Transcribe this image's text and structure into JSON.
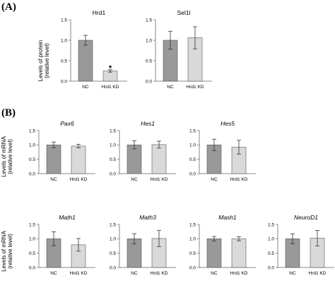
{
  "panel_labels": {
    "a": "(A)",
    "b": "(B)"
  },
  "y_axis": {
    "line1": "Levels of protein",
    "line2": "(relative level)",
    "b_line1": "Levels of mRNA",
    "b_line2": "(relative level)",
    "ticks": [
      "0.0",
      "0.5",
      "1.0",
      "1.5"
    ]
  },
  "colors": {
    "nc_bar": "#999999",
    "kd_bar": "#d9d9d9",
    "bar_stroke": "#555555",
    "axis": "#888888"
  },
  "chart_data": [
    {
      "type": "bar",
      "title": "Hrd1",
      "italic_title": false,
      "categories": [
        "NC",
        "Hrd1 KD"
      ],
      "values": [
        1.0,
        0.25
      ],
      "errors": [
        0.12,
        0.03
      ],
      "significance": [
        "",
        "*"
      ],
      "ylim": [
        0,
        1.5
      ]
    },
    {
      "type": "bar",
      "title": "Sel1l",
      "italic_title": false,
      "categories": [
        "NC",
        "Hrd1 KD"
      ],
      "values": [
        1.0,
        1.06
      ],
      "errors": [
        0.22,
        0.27
      ],
      "ylim": [
        0,
        1.5
      ]
    },
    {
      "type": "bar",
      "title": "Pax6",
      "italic_title": true,
      "categories": [
        "NC",
        "Hrd1 KD"
      ],
      "values": [
        1.0,
        0.96
      ],
      "errors": [
        0.1,
        0.06
      ],
      "ylim": [
        0,
        1.5
      ]
    },
    {
      "type": "bar",
      "title": "Hes1",
      "italic_title": true,
      "categories": [
        "NC",
        "Hrd1 KD"
      ],
      "values": [
        1.0,
        1.01
      ],
      "errors": [
        0.14,
        0.12
      ],
      "ylim": [
        0,
        1.5
      ]
    },
    {
      "type": "bar",
      "title": "Hes5",
      "italic_title": true,
      "categories": [
        "NC",
        "Hrd1 KD"
      ],
      "values": [
        1.0,
        0.92
      ],
      "errors": [
        0.2,
        0.24
      ],
      "ylim": [
        0,
        1.5
      ]
    },
    {
      "type": "bar",
      "title": "Math1",
      "italic_title": true,
      "categories": [
        "NC",
        "Hrd1 KD"
      ],
      "values": [
        1.0,
        0.79
      ],
      "errors": [
        0.24,
        0.22
      ],
      "ylim": [
        0,
        1.5
      ]
    },
    {
      "type": "bar",
      "title": "Math3",
      "italic_title": true,
      "categories": [
        "NC",
        "Hrd1 KD"
      ],
      "values": [
        1.0,
        1.01
      ],
      "errors": [
        0.18,
        0.28
      ],
      "ylim": [
        0,
        1.5
      ]
    },
    {
      "type": "bar",
      "title": "Mash1",
      "italic_title": true,
      "categories": [
        "NC",
        "Hrd1 KD"
      ],
      "values": [
        1.0,
        1.0
      ],
      "errors": [
        0.08,
        0.07
      ],
      "ylim": [
        0,
        1.5
      ]
    },
    {
      "type": "bar",
      "title": "NeuroD1",
      "italic_title": true,
      "categories": [
        "NC",
        "Hrd1 KD"
      ],
      "values": [
        1.0,
        1.02
      ],
      "errors": [
        0.17,
        0.27
      ],
      "ylim": [
        0,
        1.5
      ]
    }
  ]
}
